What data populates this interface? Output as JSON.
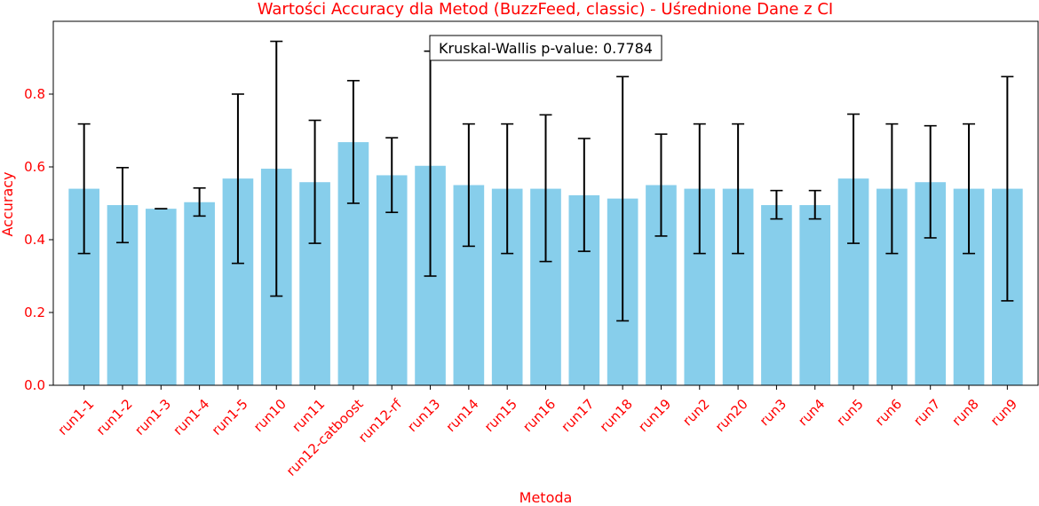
{
  "chart_data": {
    "type": "bar",
    "title": "Wartości Accuracy dla Metod (BuzzFeed, classic) - Uśrednione Dane z CI",
    "xlabel": "Metoda",
    "ylabel": "Accuracy",
    "ylim": [
      0,
      1.0
    ],
    "yticks": [
      0.0,
      0.2,
      0.4,
      0.6,
      0.8
    ],
    "ytick_labels": [
      "0.0",
      "0.2",
      "0.4",
      "0.6",
      "0.8"
    ],
    "grid": false,
    "bar_color": "#87ceeb",
    "errorbar_color": "#000000",
    "text_color": "#ff0000",
    "annotation": "Kruskal-Wallis p-value: 0.7784",
    "categories": [
      "run1-1",
      "run1-2",
      "run1-3",
      "run1-4",
      "run1-5",
      "run10",
      "run11",
      "run12-catboost",
      "run12-rf",
      "run13",
      "run14",
      "run15",
      "run16",
      "run17",
      "run18",
      "run19",
      "run2",
      "run20",
      "run3",
      "run4",
      "run5",
      "run6",
      "run7",
      "run8",
      "run9"
    ],
    "values": [
      0.54,
      0.495,
      0.485,
      0.503,
      0.568,
      0.595,
      0.558,
      0.668,
      0.577,
      0.603,
      0.55,
      0.54,
      0.54,
      0.522,
      0.513,
      0.55,
      0.54,
      0.54,
      0.495,
      0.495,
      0.568,
      0.54,
      0.558,
      0.54,
      0.54
    ],
    "ci_low": [
      0.362,
      0.392,
      0.485,
      0.465,
      0.335,
      0.245,
      0.39,
      0.5,
      0.475,
      0.3,
      0.382,
      0.362,
      0.34,
      0.368,
      0.177,
      0.41,
      0.362,
      0.362,
      0.457,
      0.457,
      0.39,
      0.362,
      0.405,
      0.362,
      0.232
    ],
    "ci_high": [
      0.718,
      0.598,
      0.485,
      0.542,
      0.8,
      0.945,
      0.728,
      0.837,
      0.68,
      0.918,
      0.718,
      0.718,
      0.743,
      0.678,
      0.848,
      0.69,
      0.718,
      0.718,
      0.535,
      0.535,
      0.745,
      0.718,
      0.713,
      0.718,
      0.848
    ]
  }
}
